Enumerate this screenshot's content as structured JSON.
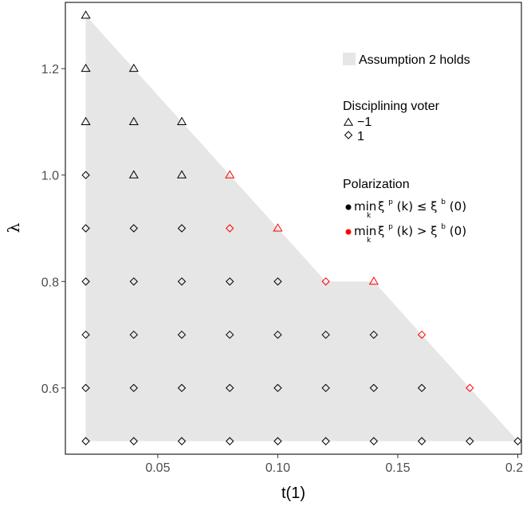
{
  "chart_data": {
    "type": "scatter",
    "xlabel": "t(1)",
    "ylabel": "λ",
    "xlim": [
      0.0115,
      0.2015
    ],
    "ylim": [
      0.4755,
      1.3245
    ],
    "x_ticks": [
      0.05,
      0.1,
      0.15,
      0.2
    ],
    "x_tick_labels": [
      "0.05",
      "0.10",
      "0.15",
      "0.20"
    ],
    "y_ticks": [
      0.6,
      0.8,
      1.0,
      1.2
    ],
    "y_tick_labels": [
      "0.6",
      "0.8",
      "1.0",
      "1.2"
    ],
    "grid": false,
    "region": {
      "label": "Assumption 2 holds",
      "color": "#e6e6e6",
      "polygon": [
        [
          0.02,
          0.5
        ],
        [
          0.02,
          1.3
        ],
        [
          0.12,
          0.8
        ],
        [
          0.14,
          0.8
        ],
        [
          0.2,
          0.5
        ]
      ]
    },
    "colors": {
      "min_le": "#000000",
      "min_gt": "#ff0000"
    },
    "points": [
      {
        "x": 0.02,
        "y": 0.5,
        "shape": "diamond",
        "color": "black"
      },
      {
        "x": 0.04,
        "y": 0.5,
        "shape": "diamond",
        "color": "black"
      },
      {
        "x": 0.06,
        "y": 0.5,
        "shape": "diamond",
        "color": "black"
      },
      {
        "x": 0.08,
        "y": 0.5,
        "shape": "diamond",
        "color": "black"
      },
      {
        "x": 0.1,
        "y": 0.5,
        "shape": "diamond",
        "color": "black"
      },
      {
        "x": 0.12,
        "y": 0.5,
        "shape": "diamond",
        "color": "black"
      },
      {
        "x": 0.14,
        "y": 0.5,
        "shape": "diamond",
        "color": "black"
      },
      {
        "x": 0.16,
        "y": 0.5,
        "shape": "diamond",
        "color": "black"
      },
      {
        "x": 0.18,
        "y": 0.5,
        "shape": "diamond",
        "color": "black"
      },
      {
        "x": 0.2,
        "y": 0.5,
        "shape": "diamond",
        "color": "black"
      },
      {
        "x": 0.02,
        "y": 0.6,
        "shape": "diamond",
        "color": "black"
      },
      {
        "x": 0.04,
        "y": 0.6,
        "shape": "diamond",
        "color": "black"
      },
      {
        "x": 0.06,
        "y": 0.6,
        "shape": "diamond",
        "color": "black"
      },
      {
        "x": 0.08,
        "y": 0.6,
        "shape": "diamond",
        "color": "black"
      },
      {
        "x": 0.1,
        "y": 0.6,
        "shape": "diamond",
        "color": "black"
      },
      {
        "x": 0.12,
        "y": 0.6,
        "shape": "diamond",
        "color": "black"
      },
      {
        "x": 0.14,
        "y": 0.6,
        "shape": "diamond",
        "color": "black"
      },
      {
        "x": 0.16,
        "y": 0.6,
        "shape": "diamond",
        "color": "black"
      },
      {
        "x": 0.18,
        "y": 0.6,
        "shape": "diamond",
        "color": "red"
      },
      {
        "x": 0.02,
        "y": 0.7,
        "shape": "diamond",
        "color": "black"
      },
      {
        "x": 0.04,
        "y": 0.7,
        "shape": "diamond",
        "color": "black"
      },
      {
        "x": 0.06,
        "y": 0.7,
        "shape": "diamond",
        "color": "black"
      },
      {
        "x": 0.08,
        "y": 0.7,
        "shape": "diamond",
        "color": "black"
      },
      {
        "x": 0.1,
        "y": 0.7,
        "shape": "diamond",
        "color": "black"
      },
      {
        "x": 0.12,
        "y": 0.7,
        "shape": "diamond",
        "color": "black"
      },
      {
        "x": 0.14,
        "y": 0.7,
        "shape": "diamond",
        "color": "black"
      },
      {
        "x": 0.16,
        "y": 0.7,
        "shape": "diamond",
        "color": "red"
      },
      {
        "x": 0.02,
        "y": 0.8,
        "shape": "diamond",
        "color": "black"
      },
      {
        "x": 0.04,
        "y": 0.8,
        "shape": "diamond",
        "color": "black"
      },
      {
        "x": 0.06,
        "y": 0.8,
        "shape": "diamond",
        "color": "black"
      },
      {
        "x": 0.08,
        "y": 0.8,
        "shape": "diamond",
        "color": "black"
      },
      {
        "x": 0.1,
        "y": 0.8,
        "shape": "diamond",
        "color": "black"
      },
      {
        "x": 0.12,
        "y": 0.8,
        "shape": "diamond",
        "color": "red"
      },
      {
        "x": 0.14,
        "y": 0.8,
        "shape": "triangle",
        "color": "red"
      },
      {
        "x": 0.02,
        "y": 0.9,
        "shape": "diamond",
        "color": "black"
      },
      {
        "x": 0.04,
        "y": 0.9,
        "shape": "diamond",
        "color": "black"
      },
      {
        "x": 0.06,
        "y": 0.9,
        "shape": "diamond",
        "color": "black"
      },
      {
        "x": 0.08,
        "y": 0.9,
        "shape": "diamond",
        "color": "red"
      },
      {
        "x": 0.1,
        "y": 0.9,
        "shape": "triangle",
        "color": "red"
      },
      {
        "x": 0.02,
        "y": 1.0,
        "shape": "diamond",
        "color": "black"
      },
      {
        "x": 0.04,
        "y": 1.0,
        "shape": "triangle",
        "color": "black"
      },
      {
        "x": 0.06,
        "y": 1.0,
        "shape": "triangle",
        "color": "black"
      },
      {
        "x": 0.08,
        "y": 1.0,
        "shape": "triangle",
        "color": "red"
      },
      {
        "x": 0.02,
        "y": 1.1,
        "shape": "triangle",
        "color": "black"
      },
      {
        "x": 0.04,
        "y": 1.1,
        "shape": "triangle",
        "color": "black"
      },
      {
        "x": 0.06,
        "y": 1.1,
        "shape": "triangle",
        "color": "black"
      },
      {
        "x": 0.02,
        "y": 1.2,
        "shape": "triangle",
        "color": "black"
      },
      {
        "x": 0.04,
        "y": 1.2,
        "shape": "triangle",
        "color": "black"
      },
      {
        "x": 0.02,
        "y": 1.3,
        "shape": "triangle",
        "color": "black"
      }
    ],
    "legend": {
      "position": "top-right",
      "fill_label": "Assumption 2 holds",
      "shape_title": "Disciplining voter",
      "shape_items": [
        {
          "shape": "triangle",
          "label": "−1"
        },
        {
          "shape": "diamond",
          "label": "1"
        }
      ],
      "color_title": "Polarization",
      "color_items": [
        {
          "color": "black",
          "label": "min ξᵖ(k) ≤ ξᵇ(0)",
          "min": "min",
          "sub": "k",
          "expr": "ξ",
          "sup1": "p",
          "mid": "(k) ≤ ξ",
          "sup2": "b",
          "end": "(0)"
        },
        {
          "color": "red",
          "label": "min ξᵖ(k) > ξᵇ(0)",
          "min": "min",
          "sub": "k",
          "expr": "ξ",
          "sup1": "p",
          "mid": "(k) > ξ",
          "sup2": "b",
          "end": "(0)"
        }
      ]
    }
  }
}
